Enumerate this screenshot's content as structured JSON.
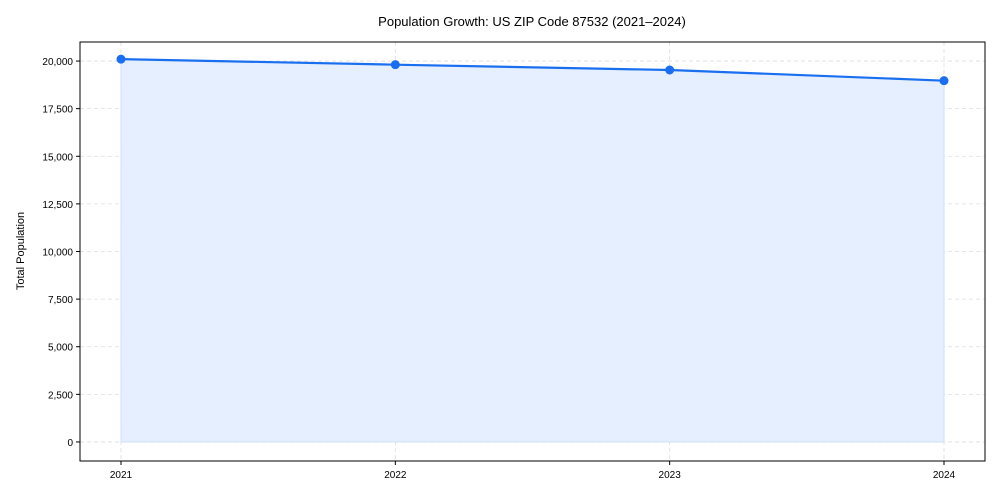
{
  "chart_data": {
    "type": "area",
    "title": "Population Growth: US ZIP Code 87532 (2021–2024)",
    "xlabel": "",
    "ylabel": "Total Population",
    "categories": [
      "2021",
      "2022",
      "2023",
      "2024"
    ],
    "series": [
      {
        "name": "Total Population",
        "values": [
          20100,
          19810,
          19530,
          18970
        ]
      }
    ],
    "ylim": [
      -1000,
      21000
    ],
    "yticks": [
      0,
      2500,
      5000,
      7500,
      10000,
      12500,
      15000,
      17500,
      20000
    ],
    "ytick_labels": [
      "0",
      "2,500",
      "5,000",
      "7,500",
      "10,000",
      "12,500",
      "15,000",
      "17,500",
      "20,000"
    ],
    "grid": true,
    "colors": {
      "line": "#1a6ff0",
      "fill": "#e5efff",
      "grid": "#dddddd"
    }
  }
}
